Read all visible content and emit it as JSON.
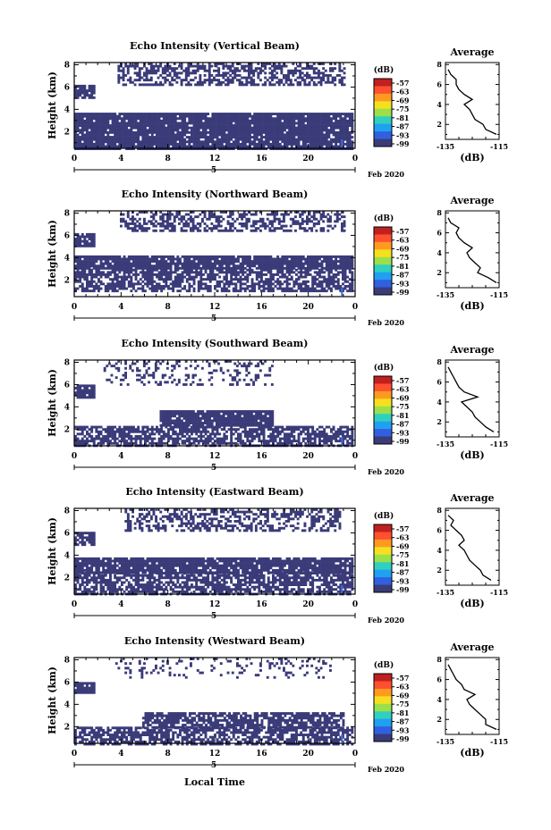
{
  "figure": {
    "x_axis_label": "Local Time",
    "date_suffix": "Feb 2020",
    "date_row_label": "5",
    "y_axis_label": "Height (km)",
    "colorbar_unit": "(dB)",
    "average_title": "Average",
    "average_unit": "(dB)"
  },
  "colors": {
    "background": "#ffffff",
    "echo_fill": "#3a3b79",
    "bright_echo": "#3f6fe0",
    "frame": "#000000"
  },
  "colorbar": {
    "ticks": [
      "-57",
      "-63",
      "-69",
      "-75",
      "-81",
      "-87",
      "-93",
      "-99"
    ],
    "colors": [
      "#c02020",
      "#ff5030",
      "#ff9a20",
      "#f5e020",
      "#9be04a",
      "#30d0c0",
      "#20a0f0",
      "#3060e0",
      "#3a3b79"
    ]
  },
  "chart_data": [
    {
      "type": "heatmap",
      "title": "Echo Intensity (Vertical Beam)",
      "xlabel": "",
      "ylabel": "Height (km)",
      "xlim": [
        0,
        24
      ],
      "ylim": [
        0.5,
        8.2
      ],
      "xticks": [
        "0",
        "4",
        "8",
        "12",
        "16",
        "20",
        "0"
      ],
      "yticks": [
        "2",
        "4",
        "6",
        "8"
      ],
      "cmap_range_db": [
        -99,
        -57
      ],
      "echo_layers": [
        {
          "height_km": [
            0.5,
            3.7
          ],
          "time_h": [
            0.0,
            23.7
          ],
          "coverage": "dense",
          "gap_fraction": 0.06
        },
        {
          "height_km": [
            5.0,
            6.2
          ],
          "time_h": [
            0.0,
            1.6
          ],
          "coverage": "dense",
          "gap_fraction": 0.1
        },
        {
          "height_km": [
            6.2,
            8.2
          ],
          "time_h": [
            3.7,
            23.0
          ],
          "coverage": "patchy",
          "gap_fraction": 0.45
        }
      ],
      "average_profile": {
        "title": "Average",
        "xlabel": "(dB)",
        "xlim": [
          -135,
          -115
        ],
        "xticks": [
          "-135",
          "-115"
        ],
        "yticks": [
          "2",
          "4",
          "6",
          "8"
        ],
        "height_km": [
          1.0,
          1.5,
          2.0,
          2.5,
          3.0,
          3.5,
          4.0,
          4.5,
          5.0,
          5.5,
          6.0,
          6.5,
          7.0,
          7.5
        ],
        "db": [
          -116,
          -120,
          -121,
          -124,
          -125,
          -126,
          -128,
          -125,
          -128,
          -130,
          -131,
          -131,
          -133,
          -134
        ]
      }
    },
    {
      "type": "heatmap",
      "title": "Echo Intensity (Northward Beam)",
      "xlabel": "",
      "ylabel": "Height (km)",
      "xlim": [
        0,
        24
      ],
      "ylim": [
        0.5,
        8.2
      ],
      "xticks": [
        "0",
        "4",
        "8",
        "12",
        "16",
        "20",
        "0"
      ],
      "yticks": [
        "2",
        "4",
        "6",
        "8"
      ],
      "cmap_range_db": [
        -99,
        -57
      ],
      "echo_layers": [
        {
          "height_km": [
            3.0,
            4.2
          ],
          "time_h": [
            0.0,
            23.7
          ],
          "coverage": "dense",
          "gap_fraction": 0.08
        },
        {
          "height_km": [
            1.0,
            3.0
          ],
          "time_h": [
            0.0,
            23.7
          ],
          "coverage": "patchy",
          "gap_fraction": 0.35
        },
        {
          "height_km": [
            5.0,
            6.2
          ],
          "time_h": [
            0.0,
            1.6
          ],
          "coverage": "dense",
          "gap_fraction": 0.1
        },
        {
          "height_km": [
            6.4,
            8.2
          ],
          "time_h": [
            3.9,
            23.0
          ],
          "coverage": "patchy",
          "gap_fraction": 0.5
        }
      ],
      "average_profile": {
        "title": "Average",
        "xlabel": "(dB)",
        "xlim": [
          -135,
          -115
        ],
        "xticks": [
          "-135",
          "-115"
        ],
        "yticks": [
          "2",
          "4",
          "6",
          "8"
        ],
        "height_km": [
          1.0,
          1.5,
          2.0,
          2.5,
          3.0,
          3.5,
          4.0,
          4.5,
          5.0,
          5.5,
          6.0,
          6.5,
          7.0,
          7.5
        ],
        "db": [
          -116,
          -119,
          -123,
          -122,
          -124,
          -126,
          -127,
          -125,
          -128,
          -130,
          -131,
          -130,
          -133,
          -134
        ]
      }
    },
    {
      "type": "heatmap",
      "title": "Echo Intensity (Southward Beam)",
      "xlabel": "",
      "ylabel": "Height (km)",
      "xlim": [
        0,
        24
      ],
      "ylim": [
        0.5,
        8.2
      ],
      "xticks": [
        "0",
        "4",
        "8",
        "12",
        "16",
        "20",
        "0"
      ],
      "yticks": [
        "2",
        "4",
        "6",
        "8"
      ],
      "cmap_range_db": [
        -99,
        -57
      ],
      "echo_layers": [
        {
          "height_km": [
            2.3,
            3.7
          ],
          "time_h": [
            7.3,
            17.0
          ],
          "coverage": "dense",
          "gap_fraction": 0.06
        },
        {
          "height_km": [
            0.5,
            2.3
          ],
          "time_h": [
            0.0,
            23.7
          ],
          "coverage": "patchy",
          "gap_fraction": 0.3
        },
        {
          "height_km": [
            4.9,
            6.0
          ],
          "time_h": [
            0.0,
            1.6
          ],
          "coverage": "dense",
          "gap_fraction": 0.1
        },
        {
          "height_km": [
            6.0,
            8.2
          ],
          "time_h": [
            2.5,
            17.0
          ],
          "coverage": "sparse",
          "gap_fraction": 0.75
        }
      ],
      "average_profile": {
        "title": "Average",
        "xlabel": "(dB)",
        "xlim": [
          -135,
          -115
        ],
        "xticks": [
          "-135",
          "-115"
        ],
        "yticks": [
          "2",
          "4",
          "6",
          "8"
        ],
        "height_km": [
          1.0,
          1.5,
          2.0,
          2.5,
          3.0,
          3.5,
          4.0,
          4.5,
          5.0,
          5.5,
          6.0,
          6.5,
          7.0,
          7.5
        ],
        "db": [
          -117,
          -120,
          -122,
          -124,
          -125,
          -127,
          -129,
          -123,
          -128,
          -130,
          -131,
          -132,
          -133,
          -134
        ]
      }
    },
    {
      "type": "heatmap",
      "title": "Echo Intensity (Eastward Beam)",
      "xlabel": "",
      "ylabel": "Height (km)",
      "xlim": [
        0,
        24
      ],
      "ylim": [
        0.5,
        8.2
      ],
      "xticks": [
        "0",
        "4",
        "8",
        "12",
        "16",
        "20",
        "0"
      ],
      "yticks": [
        "2",
        "4",
        "6",
        "8"
      ],
      "cmap_range_db": [
        -99,
        -57
      ],
      "echo_layers": [
        {
          "height_km": [
            2.5,
            3.8
          ],
          "time_h": [
            0.0,
            23.7
          ],
          "coverage": "dense",
          "gap_fraction": 0.1
        },
        {
          "height_km": [
            0.5,
            2.5
          ],
          "time_h": [
            0.0,
            23.7
          ],
          "coverage": "patchy",
          "gap_fraction": 0.3
        },
        {
          "height_km": [
            5.0,
            6.1
          ],
          "time_h": [
            0.0,
            1.6
          ],
          "coverage": "dense",
          "gap_fraction": 0.1
        },
        {
          "height_km": [
            6.2,
            8.2
          ],
          "time_h": [
            4.3,
            22.6
          ],
          "coverage": "patchy",
          "gap_fraction": 0.5
        }
      ],
      "average_profile": {
        "title": "Average",
        "xlabel": "(dB)",
        "xlim": [
          -135,
          -115
        ],
        "xticks": [
          "-135",
          "-115"
        ],
        "yticks": [
          "2",
          "4",
          "6",
          "8"
        ],
        "height_km": [
          1.0,
          1.5,
          2.0,
          2.5,
          3.0,
          3.5,
          4.0,
          4.5,
          5.0,
          5.5,
          6.0,
          6.5,
          7.0,
          7.5
        ],
        "db": [
          -118,
          -121,
          -122,
          -124,
          -126,
          -127,
          -128,
          -130,
          -128,
          -129,
          -131,
          -133,
          -132,
          -134
        ]
      }
    },
    {
      "type": "heatmap",
      "title": "Echo Intensity (Westward Beam)",
      "xlabel": "Local Time",
      "ylabel": "Height (km)",
      "xlim": [
        0,
        24
      ],
      "ylim": [
        0.5,
        8.2
      ],
      "xticks": [
        "0",
        "4",
        "8",
        "12",
        "16",
        "20",
        "0"
      ],
      "yticks": [
        "2",
        "4",
        "6",
        "8"
      ],
      "cmap_range_db": [
        -99,
        -57
      ],
      "echo_layers": [
        {
          "height_km": [
            2.0,
            3.3
          ],
          "time_h": [
            5.8,
            23.0
          ],
          "coverage": "patchy",
          "gap_fraction": 0.25
        },
        {
          "height_km": [
            0.5,
            2.0
          ],
          "time_h": [
            0.0,
            23.7
          ],
          "coverage": "patchy",
          "gap_fraction": 0.3
        },
        {
          "height_km": [
            5.0,
            6.0
          ],
          "time_h": [
            0.0,
            1.6
          ],
          "coverage": "dense",
          "gap_fraction": 0.1
        },
        {
          "height_km": [
            6.4,
            8.2
          ],
          "time_h": [
            3.5,
            22.0
          ],
          "coverage": "sparse",
          "gap_fraction": 0.85
        }
      ],
      "average_profile": {
        "title": "Average",
        "xlabel": "(dB)",
        "xlim": [
          -135,
          -115
        ],
        "xticks": [
          "-135",
          "-115"
        ],
        "yticks": [
          "2",
          "4",
          "6",
          "8"
        ],
        "height_km": [
          1.0,
          1.5,
          2.0,
          2.5,
          3.0,
          3.5,
          4.0,
          4.5,
          5.0,
          5.5,
          6.0,
          6.5,
          7.0,
          7.5
        ],
        "db": [
          -116,
          -120,
          -120,
          -122,
          -124,
          -126,
          -127,
          -124,
          -128,
          -129,
          -131,
          -132,
          -133,
          -134
        ]
      }
    }
  ]
}
